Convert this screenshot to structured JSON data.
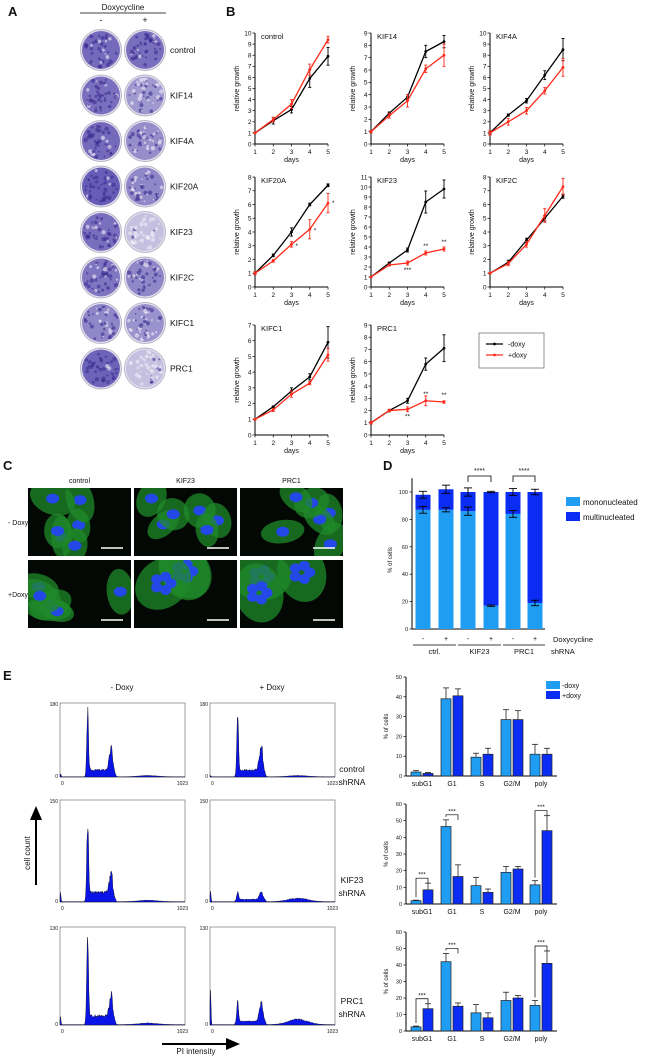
{
  "panel_labels": {
    "a": "A",
    "b": "B",
    "c": "C",
    "d": "D",
    "e": "E"
  },
  "panel_a": {
    "header": "Doxycycline",
    "minus": "-",
    "plus": "+",
    "rows": [
      {
        "label": "control",
        "stain_minus": 0.85,
        "stain_plus": 0.8
      },
      {
        "label": "KIF14",
        "stain_minus": 0.8,
        "stain_plus": 0.45
      },
      {
        "label": "KIF4A",
        "stain_minus": 0.85,
        "stain_plus": 0.55
      },
      {
        "label": "KIF20A",
        "stain_minus": 0.95,
        "stain_plus": 0.6
      },
      {
        "label": "KIF23",
        "stain_minus": 0.8,
        "stain_plus": 0.12
      },
      {
        "label": "KIF2C",
        "stain_minus": 0.75,
        "stain_plus": 0.6
      },
      {
        "label": "KIFC1",
        "stain_minus": 0.6,
        "stain_plus": 0.5
      },
      {
        "label": "PRC1",
        "stain_minus": 0.9,
        "stain_plus": 0.12
      }
    ]
  },
  "panel_b": {
    "legend": [
      "-doxy",
      "+doxy"
    ],
    "colors": {
      "minus": "#000000",
      "plus": "#ff2a1a"
    }
  },
  "panel_c": {
    "columns": [
      "control",
      "KIF23",
      "PRC1"
    ],
    "rows": [
      "- Doxy",
      "+Doxy"
    ]
  },
  "panel_e": {
    "columns": [
      "- Doxy",
      "+ Doxy"
    ],
    "rows": [
      {
        "line1": "control",
        "line2": "shRNA"
      },
      {
        "line1": "KIF23",
        "line2": "shRNA"
      },
      {
        "line1": "PRC1",
        "line2": "shRNA"
      }
    ],
    "y_arrow_label": "cell count",
    "x_arrow_label": "PI intensity"
  },
  "chart_data": [
    {
      "id": "growth-control",
      "type": "line",
      "title": "control",
      "xlabel": "days",
      "ylabel": "relative growth",
      "x": [
        1,
        2,
        3,
        4,
        5
      ],
      "ylim": [
        0,
        10
      ],
      "series": [
        {
          "name": "-doxy",
          "values": [
            1,
            2.1,
            3.1,
            5.9,
            7.9
          ],
          "errors": [
            0.05,
            0.3,
            0.3,
            0.8,
            0.8
          ]
        },
        {
          "name": "+doxy",
          "values": [
            1,
            2.2,
            3.6,
            6.7,
            9.4
          ],
          "errors": [
            0.05,
            0.2,
            0.4,
            0.5,
            0.3
          ]
        }
      ],
      "annotations": []
    },
    {
      "id": "growth-kif14",
      "type": "line",
      "title": "KIF14",
      "xlabel": "days",
      "ylabel": "relative growth",
      "x": [
        1,
        2,
        3,
        4,
        5
      ],
      "ylim": [
        0,
        9
      ],
      "series": [
        {
          "name": "-doxy",
          "values": [
            1,
            2.5,
            3.8,
            7.5,
            8.3
          ],
          "errors": [
            0.1,
            0.1,
            0.2,
            0.5,
            0.5
          ]
        },
        {
          "name": "+doxy",
          "values": [
            1,
            2.3,
            3.5,
            6.1,
            7.2
          ],
          "errors": [
            0.1,
            0.2,
            0.5,
            0.3,
            0.9
          ]
        }
      ],
      "annotations": []
    },
    {
      "id": "growth-kif4a",
      "type": "line",
      "title": "KIF4A",
      "xlabel": "days",
      "ylabel": "relative growth",
      "x": [
        1,
        2,
        3,
        4,
        5
      ],
      "ylim": [
        0,
        10
      ],
      "series": [
        {
          "name": "-doxy",
          "values": [
            1,
            2.6,
            3.9,
            6.2,
            8.5
          ],
          "errors": [
            0.1,
            0.1,
            0.2,
            0.4,
            1.0
          ]
        },
        {
          "name": "+doxy",
          "values": [
            1,
            2,
            3,
            4.8,
            6.9
          ],
          "errors": [
            0.2,
            0.3,
            0.3,
            0.3,
            0.8
          ]
        }
      ],
      "annotations": []
    },
    {
      "id": "growth-kif20a",
      "type": "line",
      "title": "KIF20A",
      "xlabel": "days",
      "ylabel": "relative growth",
      "x": [
        1,
        2,
        3,
        4,
        5
      ],
      "ylim": [
        0,
        8
      ],
      "series": [
        {
          "name": "-doxy",
          "values": [
            1,
            2.3,
            4,
            6,
            7.4
          ],
          "errors": [
            0.1,
            0.1,
            0.3,
            0.1,
            0.1
          ]
        },
        {
          "name": "+doxy",
          "values": [
            1,
            1.9,
            3.1,
            4.2,
            6.1
          ],
          "errors": [
            0.1,
            0.1,
            0.2,
            0.7,
            0.7
          ]
        }
      ],
      "annotations": [
        {
          "x": 3,
          "y": 3.0,
          "text": "*",
          "pos": "right"
        },
        {
          "x": 4,
          "y": 4.1,
          "text": "*",
          "pos": "right"
        },
        {
          "x": 5,
          "y": 6.1,
          "text": "*",
          "pos": "right"
        }
      ]
    },
    {
      "id": "growth-kif23",
      "type": "line",
      "title": "KIF23",
      "xlabel": "days",
      "ylabel": "relative growth",
      "x": [
        1,
        2,
        3,
        4,
        5
      ],
      "ylim": [
        0,
        11
      ],
      "series": [
        {
          "name": "-doxy",
          "values": [
            1,
            2.4,
            3.7,
            8.5,
            9.8
          ],
          "errors": [
            0.05,
            0.1,
            0.2,
            1.1,
            0.9
          ]
        },
        {
          "name": "+doxy",
          "values": [
            1,
            2.2,
            2.4,
            3.4,
            3.8
          ],
          "errors": [
            0.05,
            0.1,
            0.2,
            0.2,
            0.2
          ]
        }
      ],
      "annotations": [
        {
          "x": 3,
          "y": 2.4,
          "text": "***",
          "pos": "below"
        },
        {
          "x": 4,
          "y": 3.4,
          "text": "**",
          "pos": "above"
        },
        {
          "x": 5,
          "y": 3.8,
          "text": "**",
          "pos": "above"
        }
      ]
    },
    {
      "id": "growth-kif2c",
      "type": "line",
      "title": "KIF2C",
      "xlabel": "days",
      "ylabel": "relative growth",
      "x": [
        1,
        2,
        3,
        4,
        5
      ],
      "ylim": [
        0,
        8
      ],
      "series": [
        {
          "name": "-doxy",
          "values": [
            1,
            1.8,
            3.4,
            5.0,
            6.6
          ],
          "errors": [
            0.05,
            0.15,
            0.15,
            0.2,
            0.15
          ]
        },
        {
          "name": "+doxy",
          "values": [
            1,
            1.7,
            3.1,
            5.2,
            7.3
          ],
          "errors": [
            0.05,
            0.15,
            0.2,
            0.5,
            0.6
          ]
        }
      ],
      "annotations": []
    },
    {
      "id": "growth-kifc1",
      "type": "line",
      "title": "KIFC1",
      "xlabel": "days",
      "ylabel": "relative growth",
      "x": [
        1,
        2,
        3,
        4,
        5
      ],
      "ylim": [
        0,
        7
      ],
      "series": [
        {
          "name": "-doxy",
          "values": [
            1,
            1.8,
            2.8,
            3.7,
            5.9
          ],
          "errors": [
            0.05,
            0.05,
            0.2,
            0.2,
            1.0
          ]
        },
        {
          "name": "+doxy",
          "values": [
            1,
            1.6,
            2.6,
            3.3,
            5.1
          ],
          "errors": [
            0.05,
            0.1,
            0.2,
            0.1,
            0.4
          ]
        }
      ],
      "annotations": []
    },
    {
      "id": "growth-prc1",
      "type": "line",
      "title": "PRC1",
      "xlabel": "days",
      "ylabel": "relative growth",
      "x": [
        1,
        2,
        3,
        4,
        5
      ],
      "ylim": [
        0,
        9
      ],
      "series": [
        {
          "name": "-doxy",
          "values": [
            1,
            2,
            2.8,
            5.8,
            7.1
          ],
          "errors": [
            0.1,
            0.1,
            0.2,
            0.5,
            1.1
          ]
        },
        {
          "name": "+doxy",
          "values": [
            1,
            2,
            2.1,
            2.8,
            2.7
          ],
          "errors": [
            0.1,
            0.1,
            0.2,
            0.4,
            0.1
          ]
        }
      ],
      "annotations": [
        {
          "x": 3,
          "y": 2.1,
          "text": "**",
          "pos": "below"
        },
        {
          "x": 4,
          "y": 2.8,
          "text": "**",
          "pos": "above"
        },
        {
          "x": 5,
          "y": 2.7,
          "text": "**",
          "pos": "above"
        }
      ]
    },
    {
      "id": "nucleation",
      "type": "bar",
      "stacked": true,
      "ylabel": "% of cells",
      "ylim": [
        0,
        110
      ],
      "yticks": [
        0,
        20,
        40,
        60,
        80,
        100
      ],
      "categories": [
        "-",
        "+",
        "-",
        "+",
        "-",
        "+"
      ],
      "row_label": "Doxycycline",
      "groups": [
        "ctrl.",
        "KIF23",
        "PRC1"
      ],
      "group_label": "shRNA",
      "series": [
        {
          "name": "mononucleated",
          "color": "#1e9df2",
          "values": [
            87,
            87,
            86,
            17,
            84,
            19
          ],
          "errors": [
            2.5,
            1.5,
            3,
            0.5,
            2.5,
            2
          ]
        },
        {
          "name": "multinucleated",
          "color": "#0b2cf2",
          "values": [
            11,
            15,
            14,
            83,
            16,
            81
          ],
          "errors": [
            2.5,
            3,
            3,
            0.5,
            2.5,
            2
          ]
        }
      ],
      "significance": [
        {
          "bars": [
            2,
            3
          ],
          "text": "****"
        },
        {
          "bars": [
            4,
            5
          ],
          "text": "****"
        }
      ]
    },
    {
      "id": "cellcycle-control",
      "type": "bar",
      "ylabel": "% of cells",
      "ylim": [
        0,
        50
      ],
      "yticks": [
        0,
        10,
        20,
        30,
        40,
        50
      ],
      "categories": [
        "subG1",
        "G1",
        "S",
        "G2/M",
        "poly"
      ],
      "series": [
        {
          "name": "-doxy",
          "color": "#1e9df2",
          "values": [
            2,
            39,
            9.5,
            28.5,
            11
          ],
          "errors": [
            0.7,
            5.5,
            2,
            5,
            5
          ]
        },
        {
          "name": "+doxy",
          "color": "#0b2cf2",
          "values": [
            1.3,
            40.5,
            11,
            28.5,
            11
          ],
          "errors": [
            0.5,
            3.5,
            3,
            4.5,
            3
          ]
        }
      ],
      "significance": []
    },
    {
      "id": "cellcycle-kif23",
      "type": "bar",
      "ylabel": "% of cells",
      "ylim": [
        0,
        60
      ],
      "yticks": [
        0,
        10,
        20,
        30,
        40,
        50,
        60
      ],
      "categories": [
        "subG1",
        "G1",
        "S",
        "G2/M",
        "poly"
      ],
      "series": [
        {
          "name": "-doxy",
          "color": "#1e9df2",
          "values": [
            2,
            46.5,
            11,
            19,
            11.5
          ],
          "errors": [
            0.3,
            4,
            5,
            3.5,
            2.5
          ]
        },
        {
          "name": "+doxy",
          "color": "#0b2cf2",
          "values": [
            8.5,
            16.5,
            7,
            21,
            44
          ],
          "errors": [
            4,
            7,
            2,
            1.5,
            9
          ]
        }
      ],
      "significance": [
        {
          "category": 0,
          "text": "***"
        },
        {
          "category": 1,
          "text": "***"
        },
        {
          "category": 4,
          "text": "***"
        }
      ]
    },
    {
      "id": "cellcycle-prc1",
      "type": "bar",
      "ylabel": "% of cells",
      "ylim": [
        0,
        60
      ],
      "yticks": [
        0,
        10,
        20,
        30,
        40,
        50,
        60
      ],
      "categories": [
        "subG1",
        "G1",
        "S",
        "G2/M",
        "poly"
      ],
      "series": [
        {
          "name": "-doxy",
          "color": "#1e9df2",
          "values": [
            2.5,
            42,
            11,
            18.5,
            15.5
          ],
          "errors": [
            0.5,
            5,
            5,
            5,
            3
          ]
        },
        {
          "name": "+doxy",
          "color": "#0b2cf2",
          "values": [
            13.5,
            15,
            8,
            20,
            41
          ],
          "errors": [
            3,
            2,
            3,
            1.5,
            7.5
          ]
        }
      ],
      "significance": [
        {
          "category": 0,
          "text": "***"
        },
        {
          "category": 1,
          "text": "***"
        },
        {
          "category": 4,
          "text": "***"
        }
      ]
    },
    {
      "id": "histograms",
      "type": "area",
      "xlim": [
        0,
        1023
      ],
      "x_tick_labels": [
        "0",
        "1023"
      ],
      "panels": [
        {
          "row": "control",
          "col": "- Doxy",
          "ymax": 180,
          "y_tick_labels": [
            "180",
            "0"
          ],
          "subg1": 8,
          "g1": 139,
          "g2": 52,
          "plateau": 15,
          "poly": 3
        },
        {
          "row": "control",
          "col": "+ Doxy",
          "ymax": 180,
          "y_tick_labels": [
            "180",
            "0"
          ],
          "subg1": 4,
          "g1": 135,
          "g2": 55,
          "plateau": 15,
          "poly": 3
        },
        {
          "row": "KIF23",
          "col": "- Doxy",
          "ymax": 150,
          "y_tick_labels": [
            "150",
            "0"
          ],
          "subg1": 12,
          "g1": 117,
          "g2": 26,
          "plateau": 12,
          "poly": 2
        },
        {
          "row": "KIF23",
          "col": "+ Doxy",
          "ymax": 150,
          "y_tick_labels": [
            "150",
            "0"
          ],
          "subg1": 14,
          "g1": 12,
          "g2": 10,
          "plateau": 2,
          "poly": 5
        },
        {
          "row": "PRC1",
          "col": "- Doxy",
          "ymax": 130,
          "y_tick_labels": [
            "130",
            "0"
          ],
          "subg1": 10,
          "g1": 117,
          "g2": 27,
          "plateau": 10,
          "poly": 2
        },
        {
          "row": "PRC1",
          "col": "+ Doxy",
          "ymax": 130,
          "y_tick_labels": [
            "130",
            "0"
          ],
          "subg1": 45,
          "g1": 28,
          "g2": 24,
          "plateau": 3,
          "poly": 7
        }
      ]
    }
  ]
}
